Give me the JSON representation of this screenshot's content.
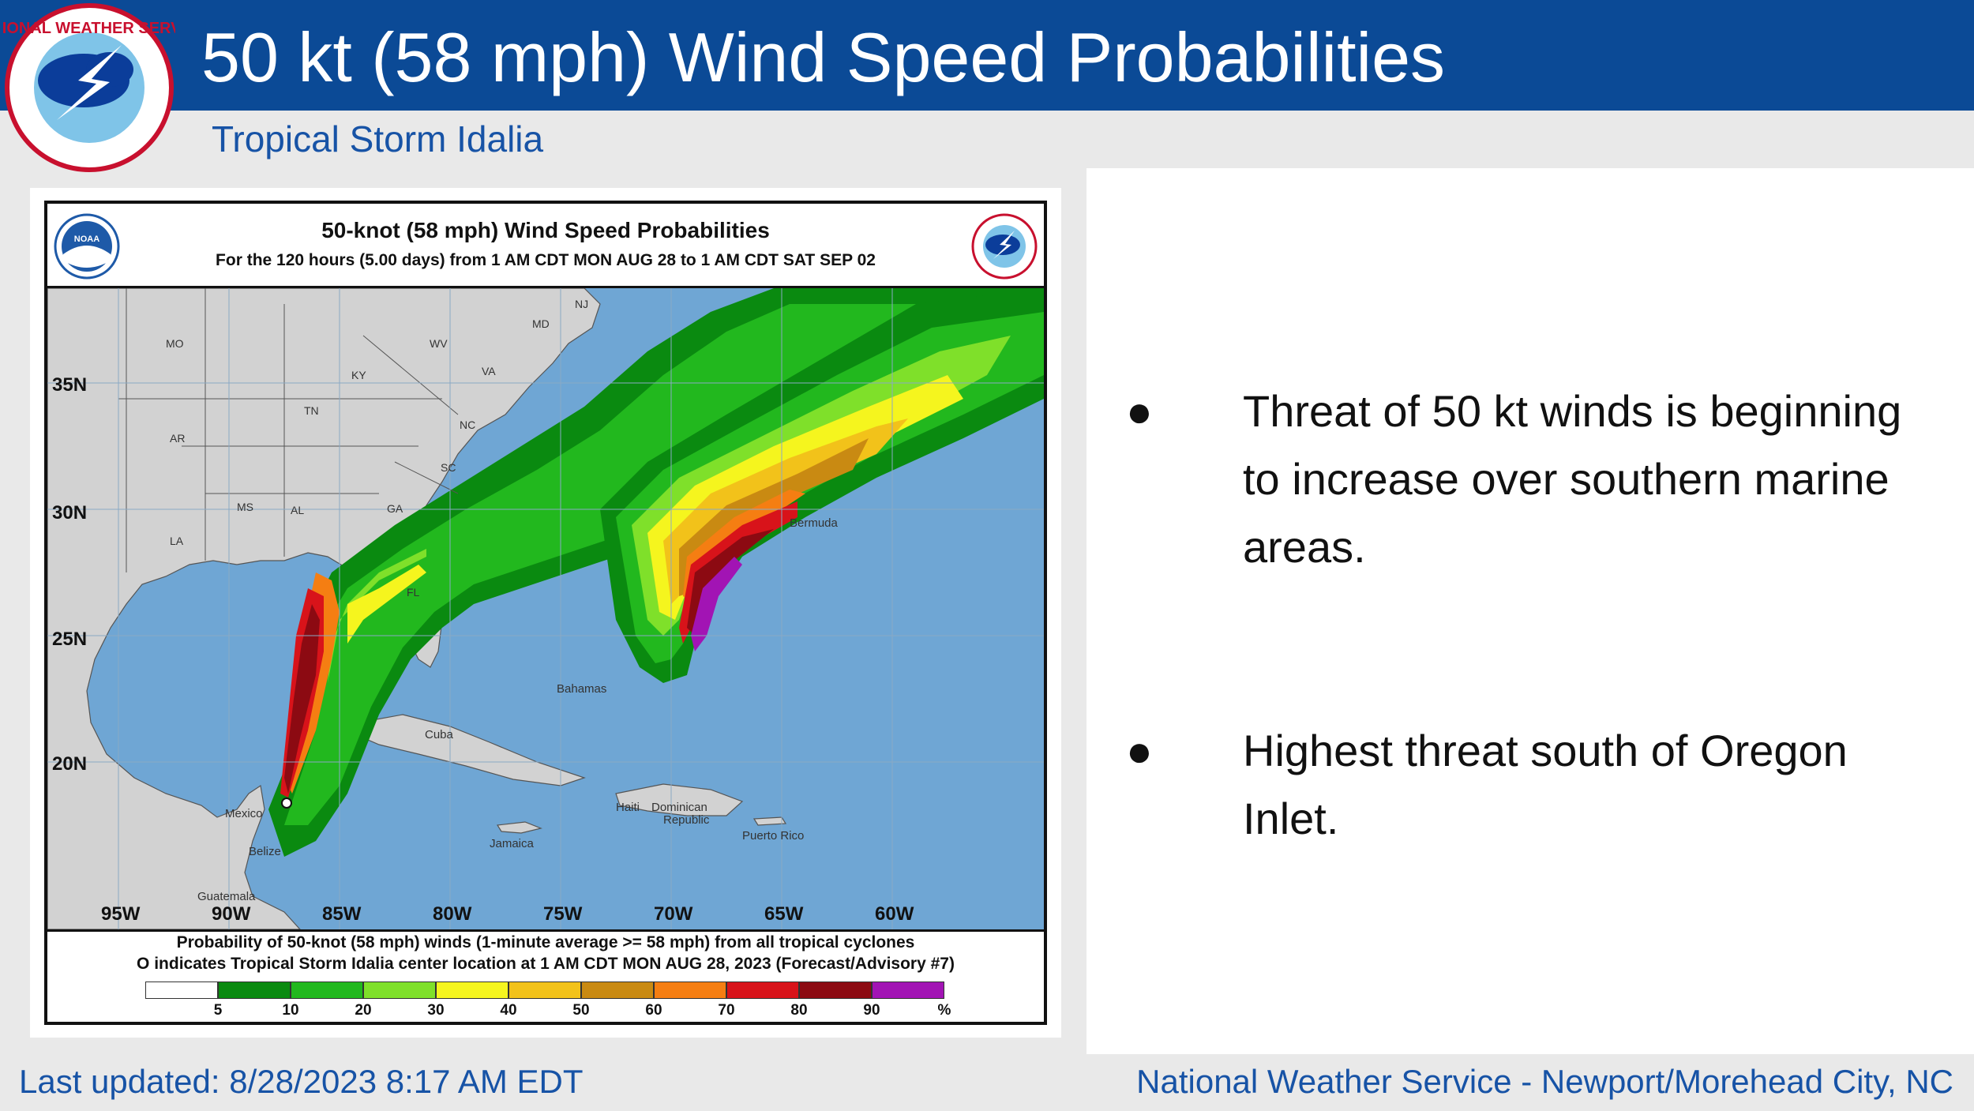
{
  "slide": {
    "title": "50 kt (58 mph) Wind Speed Probabilities",
    "subtitle": "Tropical Storm Idalia",
    "logo_text": "NATIONAL WEATHER SERVICE"
  },
  "map": {
    "title": "50-knot (58 mph) Wind Speed Probabilities",
    "subtitle": "For the 120 hours (5.00 days) from 1 AM CDT MON AUG 28 to 1 AM CDT SAT SEP 02",
    "noaa_logo_text": "NOAA",
    "lat_labels": [
      "35N",
      "30N",
      "25N",
      "20N"
    ],
    "lon_labels": [
      "95W",
      "90W",
      "85W",
      "80W",
      "75W",
      "70W",
      "65W",
      "60W"
    ],
    "state_labels": [
      "MO",
      "KY",
      "WV",
      "VA",
      "TN",
      "NC",
      "AR",
      "SC",
      "MS",
      "AL",
      "GA",
      "LA",
      "FL",
      "NJ",
      "MD"
    ],
    "place_labels": [
      "Bermuda",
      "Bahamas",
      "Cuba",
      "Mexico",
      "Haiti",
      "Dominican",
      "Republic",
      "Puerto Rico",
      "Jamaica",
      "Belize",
      "Guatemala"
    ],
    "footer_line1": "Probability of 50-knot (58 mph) winds (1-minute average >= 58 mph) from all tropical cyclones",
    "footer_line2": "O indicates Tropical Storm Idalia center location at 1 AM CDT MON AUG 28, 2023 (Forecast/Advisory #7)",
    "legend": {
      "labels": [
        "5",
        "10",
        "20",
        "30",
        "40",
        "50",
        "60",
        "70",
        "80",
        "90",
        "%"
      ],
      "colors": [
        "#ffffff",
        "#0a8a10",
        "#22b81e",
        "#7fe02a",
        "#f5f51e",
        "#f2c21a",
        "#c98a12",
        "#f57e12",
        "#d8131a",
        "#8c0a12",
        "#a214b4"
      ]
    },
    "colors": {
      "ocean": "#6fa6d4",
      "land": "#d2d2d2"
    }
  },
  "bullets": [
    "Threat of 50 kt winds is beginning to increase over southern marine areas.",
    "Highest threat south of Oregon Inlet."
  ],
  "footer": {
    "updated": "Last updated: 8/28/2023 8:17 AM EDT",
    "office": "National Weather Service - Newport/Morehead City, NC"
  }
}
